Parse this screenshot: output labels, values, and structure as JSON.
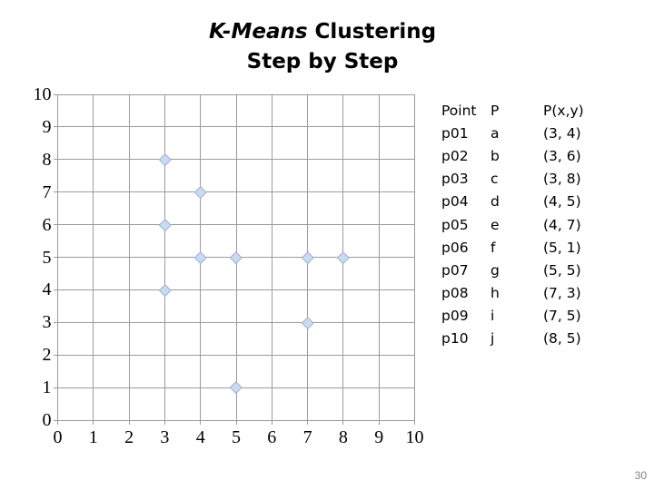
{
  "page": {
    "number": "30"
  },
  "title": {
    "line1_italic": "K-Means",
    "line1_rest": " Clustering",
    "line2": "Step by Step"
  },
  "chart_data": {
    "type": "scatter",
    "title": "",
    "xlabel": "",
    "ylabel": "",
    "xlim": [
      0,
      10
    ],
    "ylim": [
      0,
      10
    ],
    "x_ticks": [
      0,
      1,
      2,
      3,
      4,
      5,
      6,
      7,
      8,
      9,
      10
    ],
    "y_ticks": [
      0,
      1,
      2,
      3,
      4,
      5,
      6,
      7,
      8,
      9,
      10
    ],
    "grid": true,
    "legend": "none",
    "marker": {
      "shape": "diamond",
      "fill": "#CCDAEF",
      "stroke": "#9BAFD0"
    },
    "gridline_color": "#9B9B9B",
    "points": [
      {
        "label": "a",
        "x": 3,
        "y": 4
      },
      {
        "label": "b",
        "x": 3,
        "y": 6
      },
      {
        "label": "c",
        "x": 3,
        "y": 8
      },
      {
        "label": "d",
        "x": 4,
        "y": 5
      },
      {
        "label": "e",
        "x": 4,
        "y": 7
      },
      {
        "label": "f",
        "x": 5,
        "y": 1
      },
      {
        "label": "g",
        "x": 5,
        "y": 5
      },
      {
        "label": "h",
        "x": 7,
        "y": 3
      },
      {
        "label": "i",
        "x": 7,
        "y": 5
      },
      {
        "label": "j",
        "x": 8,
        "y": 5
      }
    ]
  },
  "table": {
    "headers": [
      "Point",
      "P",
      "P(x,y)"
    ],
    "rows": [
      [
        "p01",
        "a",
        "(3, 4)"
      ],
      [
        "p02",
        "b",
        "(3, 6)"
      ],
      [
        "p03",
        "c",
        "(3, 8)"
      ],
      [
        "p04",
        "d",
        "(4, 5)"
      ],
      [
        "p05",
        "e",
        "(4, 7)"
      ],
      [
        "p06",
        "f",
        "(5, 1)"
      ],
      [
        "p07",
        "g",
        "(5, 5)"
      ],
      [
        "p08",
        "h",
        "(7, 3)"
      ],
      [
        "p09",
        "i",
        "(7, 5)"
      ],
      [
        "p10",
        "j",
        "(8, 5)"
      ]
    ]
  },
  "colors": {
    "background": "#FFFFFF",
    "text": "#000000",
    "gridline": "#9B9B9B",
    "marker_fill": "#CCDAEF",
    "marker_stroke": "#9BAFD0",
    "page_number": "#808080"
  }
}
